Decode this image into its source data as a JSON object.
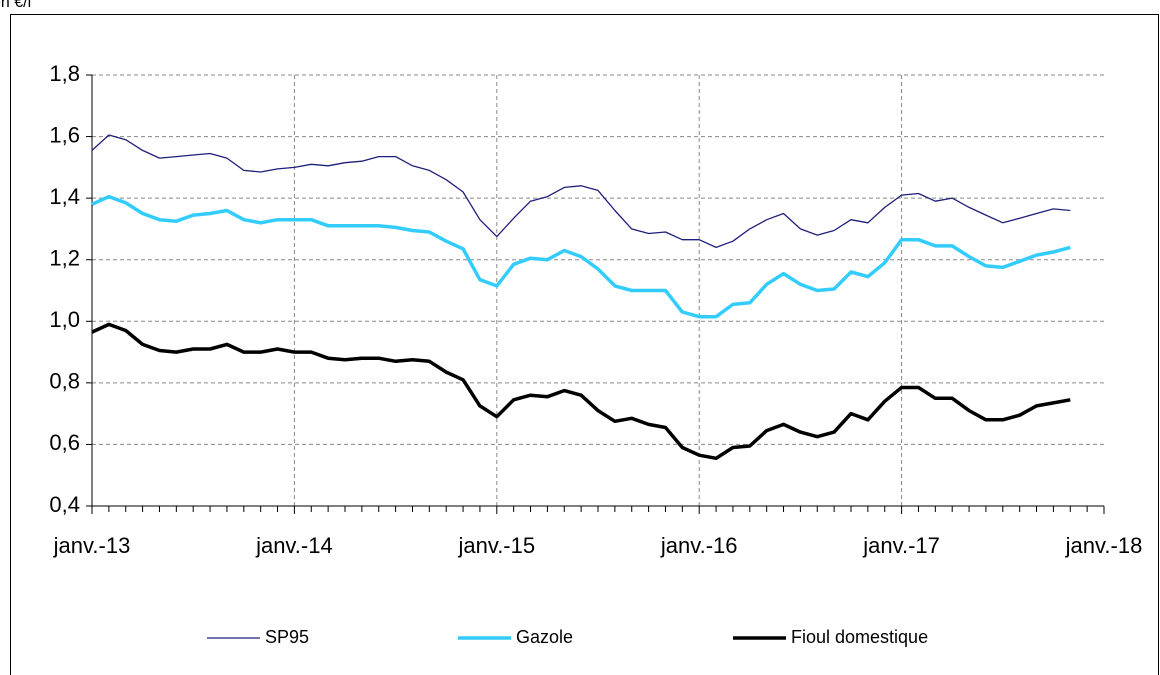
{
  "chart_data": {
    "type": "line",
    "ylabel": "en €/l",
    "categories": [
      "janv.-13",
      null,
      null,
      null,
      null,
      null,
      null,
      null,
      null,
      null,
      null,
      null,
      "janv.-14",
      null,
      null,
      null,
      null,
      null,
      null,
      null,
      null,
      null,
      null,
      null,
      "janv.-15",
      null,
      null,
      null,
      null,
      null,
      null,
      null,
      null,
      null,
      null,
      null,
      "janv.-16",
      null,
      null,
      null,
      null,
      null,
      null,
      null,
      null,
      null,
      null,
      null,
      "janv.-17",
      null,
      null,
      null,
      null,
      null,
      null,
      null,
      null,
      null,
      null,
      null,
      "janv.-18"
    ],
    "series": [
      {
        "name": "SP95",
        "color": "#1f1f7a",
        "values": [
          1.555,
          1.605,
          1.59,
          1.555,
          1.53,
          1.535,
          1.54,
          1.545,
          1.53,
          1.49,
          1.485,
          1.495,
          1.5,
          1.51,
          1.505,
          1.515,
          1.52,
          1.535,
          1.535,
          1.505,
          1.49,
          1.46,
          1.42,
          1.33,
          1.275,
          1.335,
          1.39,
          1.405,
          1.435,
          1.44,
          1.425,
          1.36,
          1.3,
          1.285,
          1.29,
          1.265,
          1.265,
          1.24,
          1.26,
          1.3,
          1.33,
          1.35,
          1.3,
          1.28,
          1.295,
          1.33,
          1.32,
          1.37,
          1.41,
          1.415,
          1.39,
          1.4,
          1.37,
          1.345,
          1.32,
          1.335,
          1.35,
          1.365,
          1.36,
          null,
          null
        ]
      },
      {
        "name": "Gazole",
        "color": "#33ccff",
        "values": [
          1.38,
          1.405,
          1.385,
          1.35,
          1.33,
          1.325,
          1.345,
          1.35,
          1.36,
          1.33,
          1.32,
          1.33,
          1.33,
          1.33,
          1.31,
          1.31,
          1.31,
          1.31,
          1.305,
          1.295,
          1.29,
          1.26,
          1.235,
          1.135,
          1.115,
          1.185,
          1.205,
          1.2,
          1.23,
          1.21,
          1.17,
          1.115,
          1.1,
          1.1,
          1.1,
          1.03,
          1.015,
          1.015,
          1.055,
          1.06,
          1.12,
          1.155,
          1.12,
          1.1,
          1.105,
          1.16,
          1.145,
          1.19,
          1.265,
          1.265,
          1.245,
          1.245,
          1.21,
          1.18,
          1.175,
          1.195,
          1.215,
          1.225,
          1.24,
          null,
          null
        ]
      },
      {
        "name": "Fioul domestique",
        "color": "#000000",
        "values": [
          0.965,
          0.99,
          0.97,
          0.925,
          0.905,
          0.9,
          0.91,
          0.91,
          0.925,
          0.9,
          0.9,
          0.91,
          0.9,
          0.9,
          0.88,
          0.875,
          0.88,
          0.88,
          0.87,
          0.875,
          0.87,
          0.835,
          0.81,
          0.725,
          0.69,
          0.745,
          0.76,
          0.755,
          0.775,
          0.76,
          0.71,
          0.675,
          0.685,
          0.665,
          0.655,
          0.59,
          0.565,
          0.555,
          0.59,
          0.595,
          0.645,
          0.665,
          0.64,
          0.625,
          0.64,
          0.7,
          0.68,
          0.74,
          0.785,
          0.785,
          0.75,
          0.75,
          0.71,
          0.68,
          0.68,
          0.695,
          0.725,
          0.735,
          0.745,
          null,
          null
        ]
      }
    ],
    "ylim": [
      0.4,
      1.8
    ],
    "yticks": [
      {
        "value": 0.4,
        "label": "0,4"
      },
      {
        "value": 0.6,
        "label": "0,6"
      },
      {
        "value": 0.8,
        "label": "0,8"
      },
      {
        "value": 1.0,
        "label": "1,0"
      },
      {
        "value": 1.2,
        "label": "1,2"
      },
      {
        "value": 1.4,
        "label": "1,4"
      },
      {
        "value": 1.6,
        "label": "1,6"
      },
      {
        "value": 1.8,
        "label": "1,8"
      }
    ],
    "grid": true,
    "legend": "bottom"
  }
}
